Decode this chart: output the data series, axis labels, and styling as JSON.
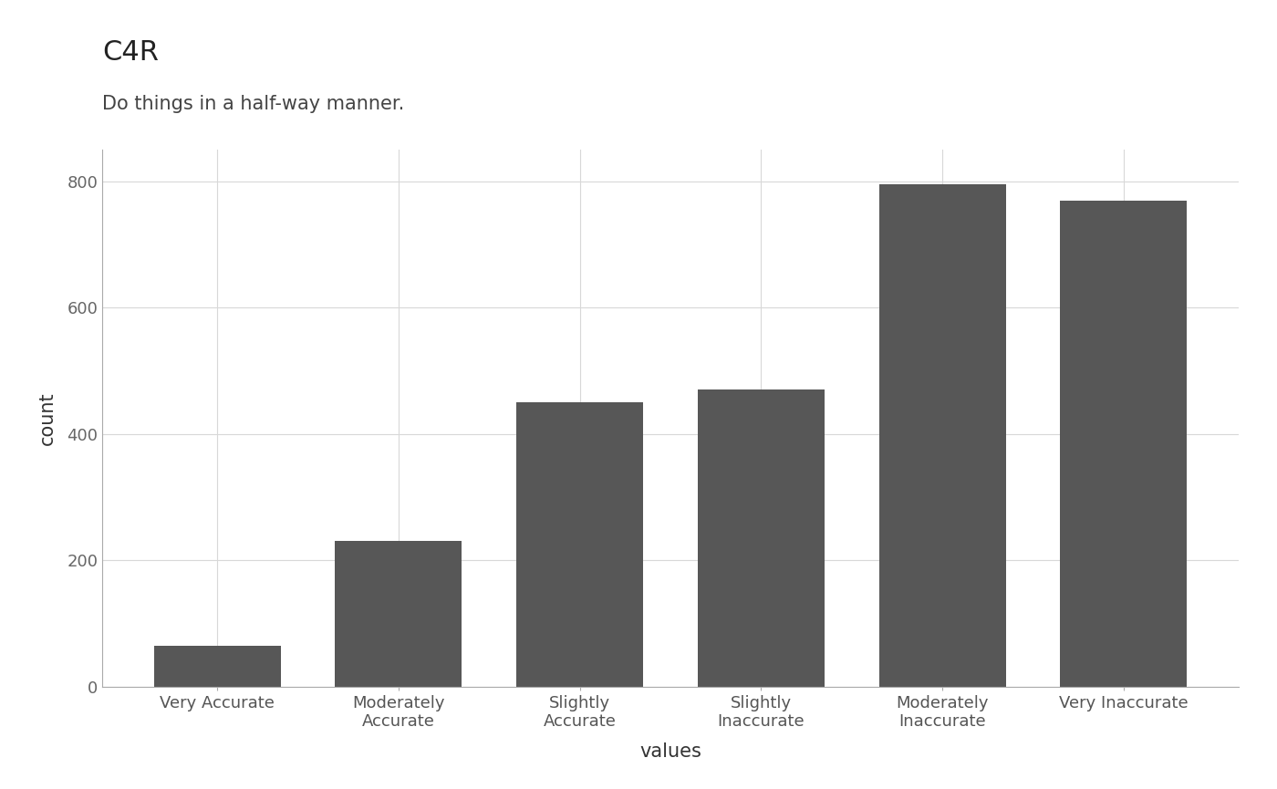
{
  "title": "C4R",
  "subtitle": "Do things in a half-way manner.",
  "categories": [
    "Very Accurate",
    "Moderately\nAccurate",
    "Slightly\nAccurate",
    "Slightly\nInaccurate",
    "Moderately\nInaccurate",
    "Very Inaccurate"
  ],
  "values": [
    65,
    230,
    450,
    470,
    795,
    770
  ],
  "bar_color": "#575757",
  "xlabel": "values",
  "ylabel": "count",
  "ylim": [
    0,
    850
  ],
  "yticks": [
    0,
    200,
    400,
    600,
    800
  ],
  "background_color": "#ffffff",
  "grid_color": "#d8d8d8",
  "title_fontsize": 22,
  "subtitle_fontsize": 15,
  "axis_label_fontsize": 15,
  "tick_fontsize": 13
}
